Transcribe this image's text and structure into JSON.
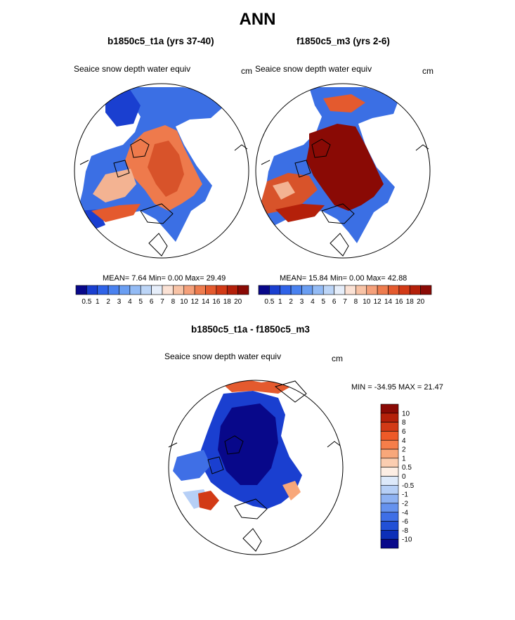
{
  "figure": {
    "title": "ANN"
  },
  "panels": [
    {
      "title": "b1850c5_t1a (yrs 37-40)",
      "var_label": "Seaice snow depth water equiv",
      "units": "cm",
      "stats": "MEAN=  7.64  Min=   0.00  Max=  29.49"
    },
    {
      "title": "f1850c5_m3 (yrs 2-6)",
      "var_label": "Seaice snow depth water equiv",
      "units": "cm",
      "stats": "MEAN= 15.84  Min=   0.00  Max=  42.88"
    },
    {
      "title": "b1850c5_t1a - f1850c5_m3",
      "var_label": "Seaice snow depth water equiv",
      "units": "cm",
      "stats": "MIN = -34.95 MAX =  21.47"
    }
  ],
  "chart_data": [
    {
      "type": "heatmap",
      "projection": "polar-stereographic",
      "title": "b1850c5_t1a (yrs 37-40)",
      "subtitle": "Seaice snow depth water equiv",
      "units": "cm",
      "stats": {
        "mean": 7.64,
        "min": 0.0,
        "max": 29.49
      },
      "colorbar_levels": [
        "0.5",
        "1",
        "2",
        "3",
        "4",
        "5",
        "6",
        "7",
        "8",
        "10",
        "12",
        "14",
        "16",
        "18",
        "20"
      ],
      "colorbar_colors": [
        "#08088a",
        "#1a3fd0",
        "#2f63e8",
        "#4a82f0",
        "#6a9ef2",
        "#93bbf5",
        "#bcd5f7",
        "#e6eefa",
        "#fbe2d5",
        "#f8c3a6",
        "#f5a07a",
        "#ee7c4e",
        "#e45a2e",
        "#d23a16",
        "#b4200a",
        "#8a0a05"
      ]
    },
    {
      "type": "heatmap",
      "projection": "polar-stereographic",
      "title": "f1850c5_m3 (yrs 2-6)",
      "subtitle": "Seaice snow depth water equiv",
      "units": "cm",
      "stats": {
        "mean": 15.84,
        "min": 0.0,
        "max": 42.88
      },
      "colorbar_levels": [
        "0.5",
        "1",
        "2",
        "3",
        "4",
        "5",
        "6",
        "7",
        "8",
        "10",
        "12",
        "14",
        "16",
        "18",
        "20"
      ],
      "colorbar_colors": [
        "#08088a",
        "#1a3fd0",
        "#2f63e8",
        "#4a82f0",
        "#6a9ef2",
        "#93bbf5",
        "#bcd5f7",
        "#e6eefa",
        "#fbe2d5",
        "#f8c3a6",
        "#f5a07a",
        "#ee7c4e",
        "#e45a2e",
        "#d23a16",
        "#b4200a",
        "#8a0a05"
      ]
    },
    {
      "type": "heatmap",
      "projection": "polar-stereographic",
      "title": "b1850c5_t1a - f1850c5_m3",
      "subtitle": "Seaice snow depth water equiv",
      "units": "cm",
      "stats": {
        "min": -34.95,
        "max": 21.47
      },
      "colorbar_levels": [
        "10",
        "8",
        "6",
        "4",
        "2",
        "1",
        "0.5",
        "0",
        "-0.5",
        "-1",
        "-2",
        "-4",
        "-6",
        "-8",
        "-10"
      ],
      "colorbar_colors": [
        "#8a0a05",
        "#b4200a",
        "#d23a16",
        "#ee5a28",
        "#f57e4a",
        "#f8a77a",
        "#fbcdb0",
        "#fdeee4",
        "#dde9fa",
        "#b6cff6",
        "#8eb2f2",
        "#6592ee",
        "#3f6fe6",
        "#2150d6",
        "#0d2fb8",
        "#08088a"
      ]
    }
  ]
}
